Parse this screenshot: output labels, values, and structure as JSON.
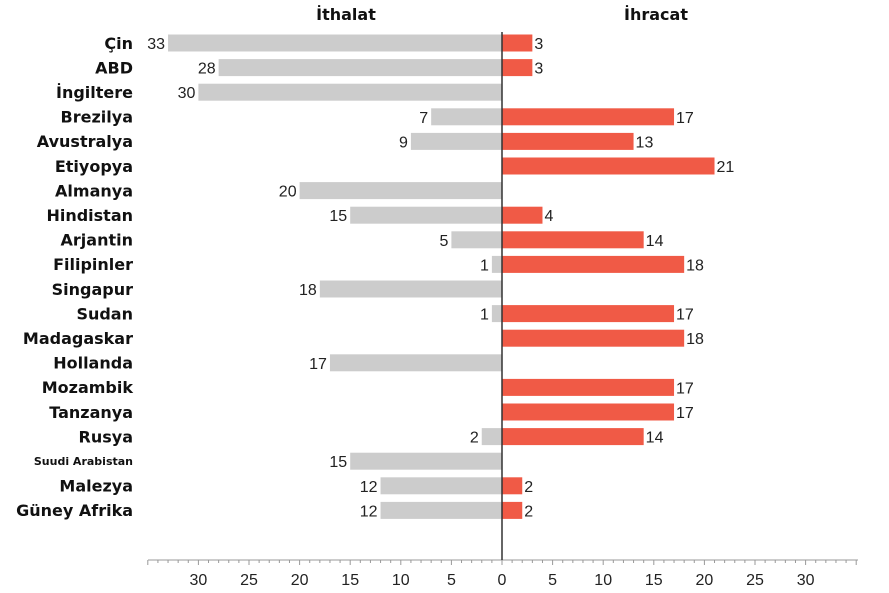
{
  "chart_data": {
    "type": "bar",
    "orientation": "horizontal-diverging",
    "categories": [
      "Çin",
      "ABD",
      "İngiltere",
      "Brezilya",
      "Avustralya",
      "Etiyopya",
      "Almanya",
      "Hindistan",
      "Arjantin",
      "Filipinler",
      "Singapur",
      "Sudan",
      "Madagaskar",
      "Hollanda",
      "Mozambik",
      "Tanzanya",
      "Rusya",
      "Suudi Arabistan",
      "Malezya",
      "Güney Afrika"
    ],
    "series": [
      {
        "name": "İthalat",
        "color": "#cccccc",
        "values": [
          33,
          28,
          30,
          7,
          9,
          null,
          20,
          15,
          5,
          1,
          18,
          1,
          null,
          17,
          null,
          null,
          2,
          15,
          12,
          12
        ]
      },
      {
        "name": "İhracat",
        "color": "#f05a46",
        "values": [
          3,
          3,
          null,
          17,
          13,
          21,
          null,
          4,
          14,
          18,
          null,
          17,
          18,
          null,
          17,
          17,
          14,
          null,
          2,
          2
        ]
      }
    ],
    "x_ticks": [
      "30",
      "25",
      "20",
      "15",
      "10",
      "5",
      "0",
      "5",
      "10",
      "15",
      "20",
      "25",
      "30"
    ],
    "xlim": [
      -35,
      35
    ],
    "grid": false,
    "legend": "headers above each side"
  }
}
